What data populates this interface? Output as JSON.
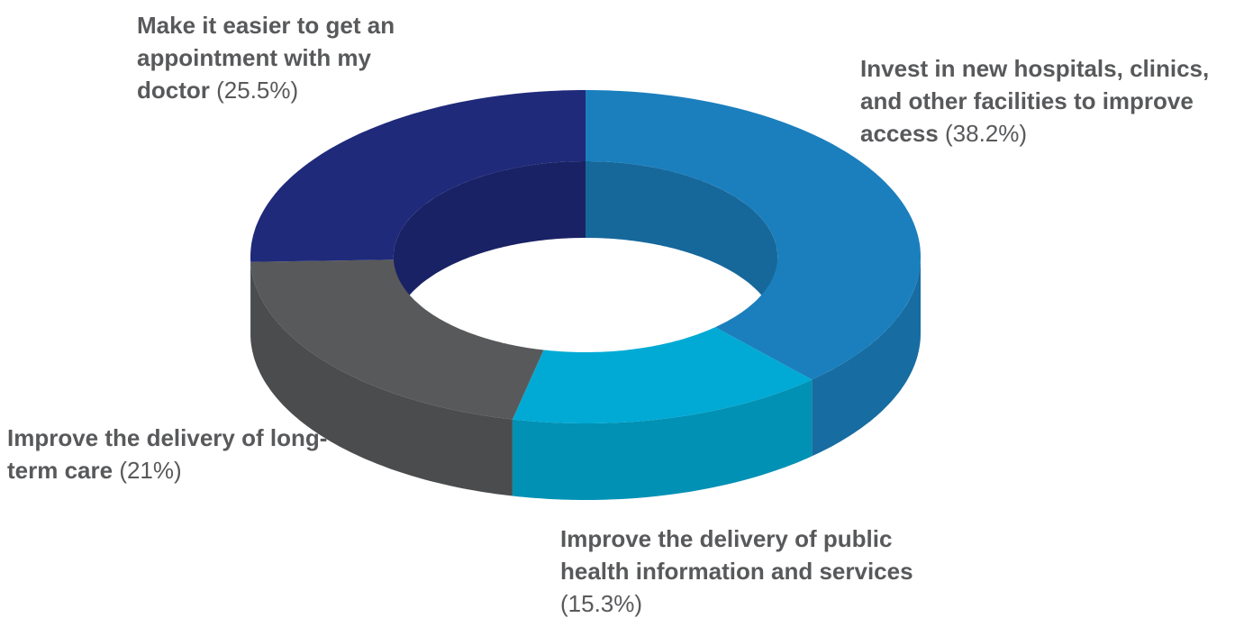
{
  "chart_data": {
    "type": "pie",
    "donut": true,
    "categories": [
      "Invest in new hospitals, clinics, and other facilities to improve access",
      "Improve the delivery of public health information and services",
      "Improve the delivery of long-term care",
      "Make it easier to get an appointment with my doctor"
    ],
    "values": [
      38.2,
      15.3,
      21,
      25.5
    ],
    "value_labels": [
      "(38.2%)",
      "(15.3%)",
      "(21%)",
      "(25.5%)"
    ],
    "colors": [
      "#1b7fbd",
      "#00aad4",
      "#58595b",
      "#1f2a7a"
    ]
  }
}
